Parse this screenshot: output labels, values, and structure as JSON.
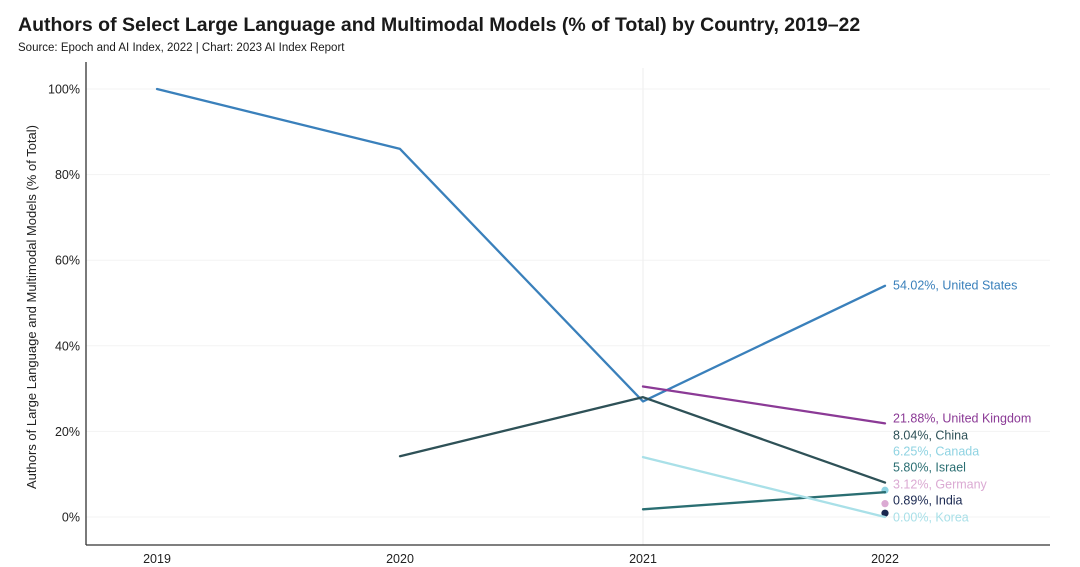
{
  "chart_data": {
    "type": "line",
    "title": "Authors of Select Large Language and Multimodal Models (% of Total) by Country, 2019–22",
    "source": "Source:  Epoch and AI Index, 2022 | Chart: 2023 AI Index Report",
    "ylabel": "Authors of Large Language and Multimodal Models (% of Total)",
    "xlabel": "",
    "x": [
      "2019",
      "2020",
      "2021",
      "2022"
    ],
    "ylim": [
      0,
      100
    ],
    "yticks": [
      0,
      20,
      40,
      60,
      80,
      100
    ],
    "ytick_labels": [
      "0%",
      "20%",
      "40%",
      "60%",
      "80%",
      "100%"
    ],
    "grid": true,
    "series": [
      {
        "name": "United States",
        "values": [
          100,
          86,
          27,
          54.02
        ],
        "color": "#3a80bb",
        "end_label": "54.02%, United States"
      },
      {
        "name": "United Kingdom",
        "values": [
          null,
          null,
          30.5,
          21.88
        ],
        "color": "#8b3a96",
        "end_label": "21.88%, United Kingdom"
      },
      {
        "name": "China",
        "values": [
          null,
          14.2,
          28,
          8.04
        ],
        "color": "#2e5157",
        "end_label": "8.04%, China"
      },
      {
        "name": "Canada",
        "values": [
          null,
          null,
          null,
          6.25
        ],
        "color": "#8fd3e2",
        "end_label": "6.25%, Canada"
      },
      {
        "name": "Israel",
        "values": [
          null,
          null,
          1.8,
          5.8
        ],
        "color": "#2a6e72",
        "end_label": "5.80%, Israel"
      },
      {
        "name": "Germany",
        "values": [
          null,
          null,
          null,
          3.12
        ],
        "color": "#dbaad3",
        "end_label": "3.12%, Germany"
      },
      {
        "name": "India",
        "values": [
          null,
          null,
          null,
          0.89
        ],
        "color": "#1a2850",
        "end_label": "0.89%, India"
      },
      {
        "name": "Korea",
        "values": [
          null,
          null,
          14,
          0.0
        ],
        "color": "#a9e0e8",
        "end_label": "0.00%, Korea"
      }
    ]
  }
}
